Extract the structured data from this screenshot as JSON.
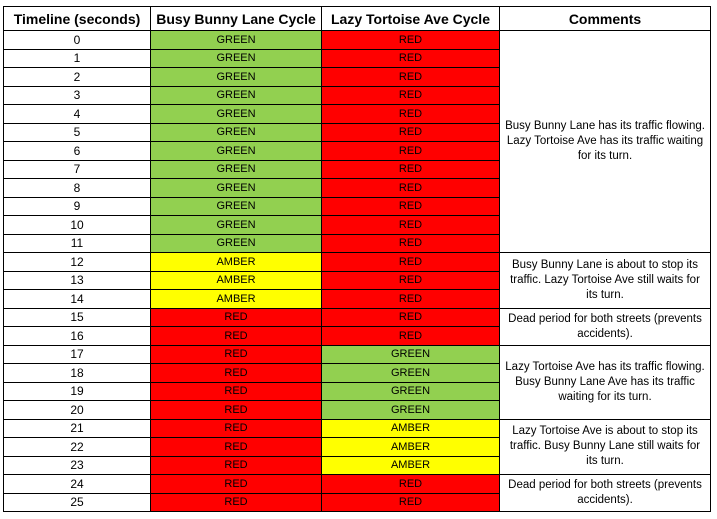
{
  "headers": {
    "timeline": "Timeline (seconds)",
    "busy": "Busy Bunny Lane Cycle",
    "lazy": "Lazy Tortoise Ave Cycle",
    "comments": "Comments"
  },
  "colors": {
    "GREEN": "#92D050",
    "RED": "#FF0000",
    "AMBER": "#FFFF00"
  },
  "rows": [
    {
      "t": "0",
      "busy": "GREEN",
      "lazy": "RED"
    },
    {
      "t": "1",
      "busy": "GREEN",
      "lazy": "RED"
    },
    {
      "t": "2",
      "busy": "GREEN",
      "lazy": "RED"
    },
    {
      "t": "3",
      "busy": "GREEN",
      "lazy": "RED"
    },
    {
      "t": "4",
      "busy": "GREEN",
      "lazy": "RED"
    },
    {
      "t": "5",
      "busy": "GREEN",
      "lazy": "RED"
    },
    {
      "t": "6",
      "busy": "GREEN",
      "lazy": "RED"
    },
    {
      "t": "7",
      "busy": "GREEN",
      "lazy": "RED"
    },
    {
      "t": "8",
      "busy": "GREEN",
      "lazy": "RED"
    },
    {
      "t": "9",
      "busy": "GREEN",
      "lazy": "RED"
    },
    {
      "t": "10",
      "busy": "GREEN",
      "lazy": "RED"
    },
    {
      "t": "11",
      "busy": "GREEN",
      "lazy": "RED"
    },
    {
      "t": "12",
      "busy": "AMBER",
      "lazy": "RED"
    },
    {
      "t": "13",
      "busy": "AMBER",
      "lazy": "RED"
    },
    {
      "t": "14",
      "busy": "AMBER",
      "lazy": "RED"
    },
    {
      "t": "15",
      "busy": "RED",
      "lazy": "RED"
    },
    {
      "t": "16",
      "busy": "RED",
      "lazy": "RED"
    },
    {
      "t": "17",
      "busy": "RED",
      "lazy": "GREEN"
    },
    {
      "t": "18",
      "busy": "RED",
      "lazy": "GREEN"
    },
    {
      "t": "19",
      "busy": "RED",
      "lazy": "GREEN"
    },
    {
      "t": "20",
      "busy": "RED",
      "lazy": "GREEN"
    },
    {
      "t": "21",
      "busy": "RED",
      "lazy": "AMBER"
    },
    {
      "t": "22",
      "busy": "RED",
      "lazy": "AMBER"
    },
    {
      "t": "23",
      "busy": "RED",
      "lazy": "AMBER"
    },
    {
      "t": "24",
      "busy": "RED",
      "lazy": "RED"
    },
    {
      "t": "25",
      "busy": "RED",
      "lazy": "RED"
    }
  ],
  "comments": [
    {
      "start": 0,
      "span": 12,
      "text": "Busy Bunny Lane has its traffic flowing. Lazy Tortoise Ave has its traffic waiting for its turn."
    },
    {
      "start": 12,
      "span": 3,
      "text": "Busy Bunny Lane is about to stop its traffic. Lazy Tortoise Ave still waits for its turn."
    },
    {
      "start": 15,
      "span": 2,
      "text": "Dead period for both streets (prevents accidents)."
    },
    {
      "start": 17,
      "span": 4,
      "text": "Lazy Tortoise Ave has its traffic flowing. Busy Bunny Lane Ave has its traffic waiting for its turn."
    },
    {
      "start": 21,
      "span": 3,
      "text": "Lazy Tortoise Ave is about to stop its traffic. Busy Bunny Lane still waits for its turn."
    },
    {
      "start": 24,
      "span": 2,
      "text": "Dead period for both streets (prevents accidents)."
    }
  ]
}
